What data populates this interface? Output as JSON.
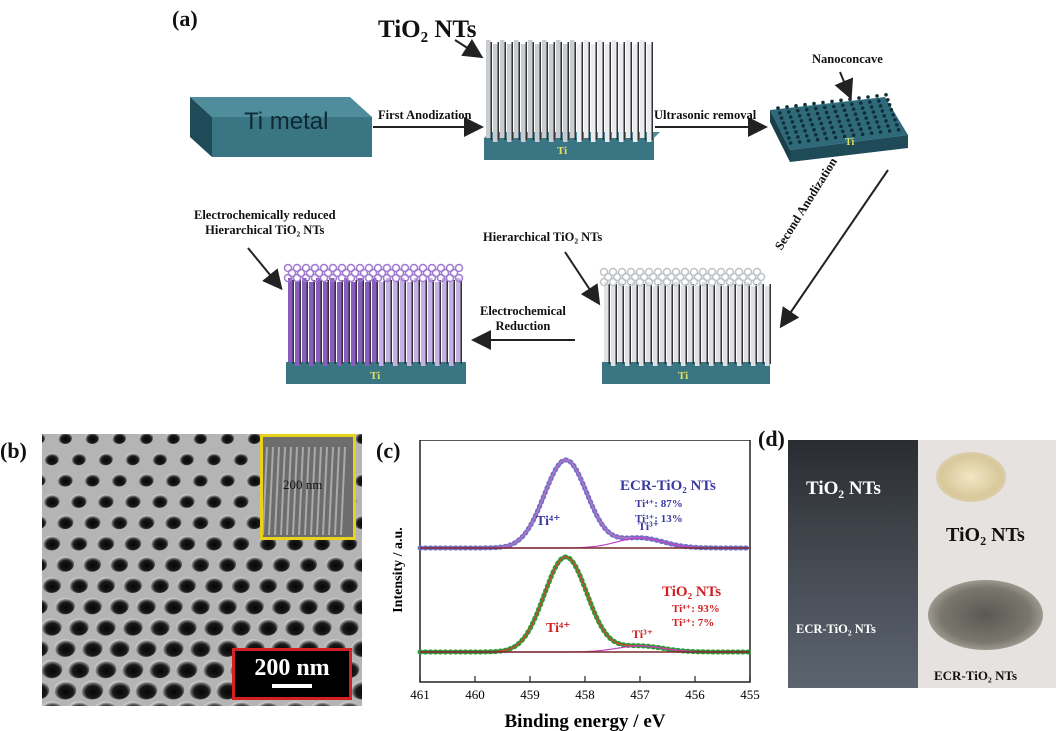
{
  "panel_a": {
    "label": "(a)",
    "ti_metal": "Ti metal",
    "tio2_nts": "TiO₂ NTs",
    "first_anodization": "First Anodization",
    "ultrasonic_removal": "Ultrasonic removal",
    "nanoconcave": "Nanoconcave",
    "second_anodization": "Second Anodization",
    "hierarchical": "Hierarchical TiO₂ NTs",
    "reduction_line1": "Electrochemical",
    "reduction_line2": "Reduction",
    "reduced_line1": "Electrochemically reduced",
    "reduced_line2": "Hierarchical TiO₂ NTs",
    "ti_base": "Ti"
  },
  "panel_b": {
    "label": "(b)",
    "scale_main": "200 nm",
    "scale_inset": "200 nm"
  },
  "panel_c": {
    "label": "(c)",
    "ylabel": "Intensity / a.u.",
    "xlabel": "Binding energy / eV",
    "x_ticks": [
      "461",
      "460",
      "459",
      "458",
      "457",
      "456",
      "455"
    ],
    "ecr_title": "ECR-TiO₂ NTs",
    "ecr_ti4": "Ti⁴⁺: 87%",
    "ecr_ti3": "Ti³⁺: 13%",
    "tio2_title": "TiO₂ NTs",
    "tio2_ti4": "Ti⁴⁺: 93%",
    "tio2_ti3": "Ti³⁺: 7%",
    "peak_ti4": "Ti⁴⁺",
    "peak_ti3": "Ti³⁺"
  },
  "panel_d": {
    "label": "(d)",
    "film_top": "TiO₂ NTs",
    "film_bottom": "ECR-TiO₂ NTs",
    "powder_top": "TiO₂ NTs",
    "powder_bottom": "ECR-TiO₂ NTs"
  },
  "colors": {
    "teal": "#2f5f6f",
    "purple": "#8a5cc0",
    "ecr_text": "#3a3aa0",
    "tio2_text": "#d02020",
    "inset_frame": "#e8d21a",
    "scale_frame": "#d42020"
  }
}
